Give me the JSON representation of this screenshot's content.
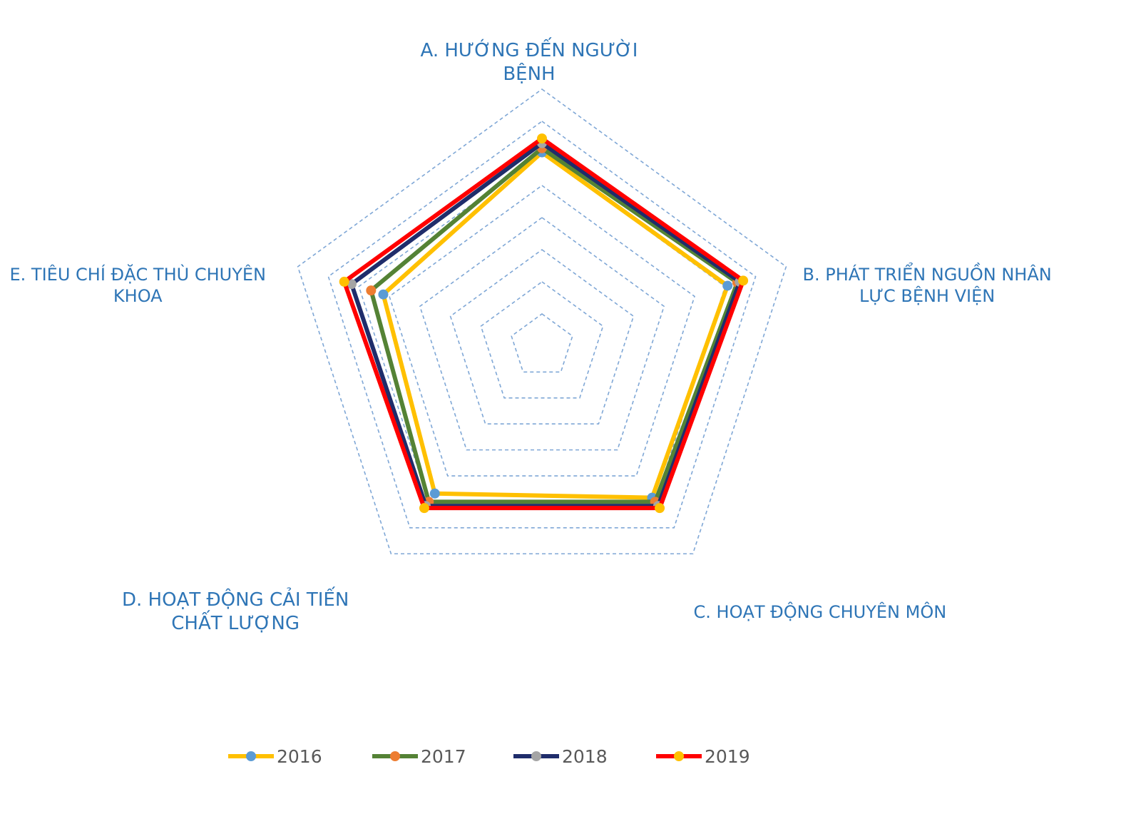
{
  "chart_data": {
    "type": "radar",
    "categories": [
      "A. HƯỚNG ĐẾN NGƯỜI BỆNH",
      "B. PHÁT TRIỂN NGUỒN NHÂN LỰC BỆNH VIỆN",
      "C. HOẠT ĐỘNG CHUYÊN MÔN",
      "D. HOẠT ĐỘNG CẢI TIẾN CHẤT LƯỢNG",
      "E. TIÊU CHÍ ĐẶC THÙ CHUYÊN KHOA"
    ],
    "category_lines": [
      [
        "A. HƯỚNG ĐẾN NGƯỜI",
        "BỆNH"
      ],
      [
        "B. PHÁT TRIỂN NGUỒN NHÂN",
        "LỰC BỆNH VIỆN"
      ],
      [
        "C. HOẠT ĐỘNG CHUYÊN MÔN"
      ],
      [
        "D. HOẠT ĐỘNG CẢI TIẾN",
        "CHẤT LƯỢNG"
      ],
      [
        "E. TIÊU CHÍ ĐẶC THÙ CHUYÊN",
        "KHOA"
      ]
    ],
    "rlim": [
      0,
      5
    ],
    "gridlines": 8,
    "series": [
      {
        "name": "2016",
        "line_color": "#FFC000",
        "marker_color": "#5B9BD5",
        "values": [
          3.77,
          3.8,
          3.65,
          3.55,
          3.25
        ]
      },
      {
        "name": "2017",
        "line_color": "#548235",
        "marker_color": "#ED7D31",
        "values": [
          3.85,
          4.0,
          3.75,
          3.75,
          3.5
        ]
      },
      {
        "name": "2018",
        "line_color": "#1F2D6B",
        "marker_color": "#A5A5A5",
        "values": [
          3.95,
          4.05,
          3.85,
          3.85,
          3.9
        ]
      },
      {
        "name": "2019",
        "line_color": "#FF0000",
        "marker_color": "#FFC000",
        "values": [
          4.04,
          4.12,
          3.9,
          3.9,
          4.05
        ]
      }
    ],
    "legend_position": "bottom",
    "grid": true
  }
}
